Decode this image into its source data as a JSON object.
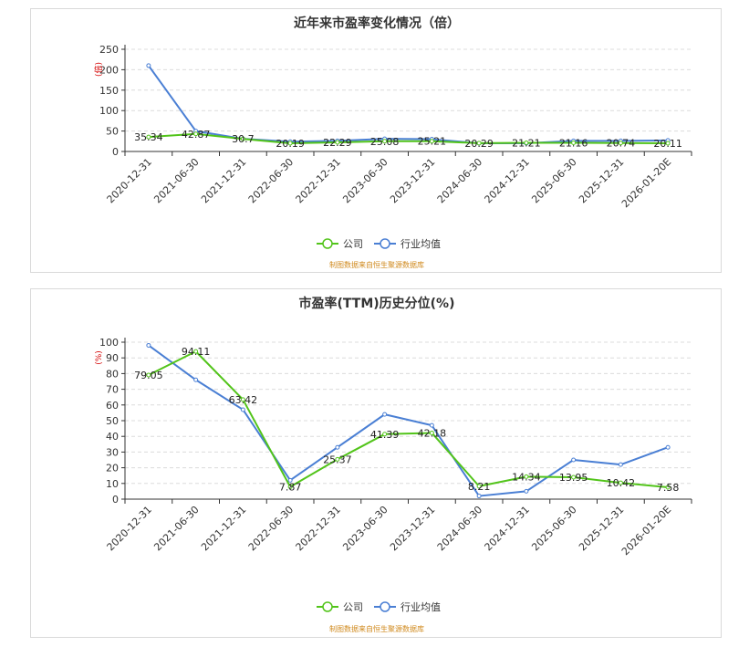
{
  "chart_data": [
    {
      "type": "line",
      "title": "近年来市盈率变化情况（倍）",
      "ylabel": "(倍)",
      "ylim": [
        0,
        250
      ],
      "yticks": [
        0,
        50,
        100,
        150,
        200,
        250
      ],
      "grid": true,
      "legend_position": "bottom",
      "categories": [
        "2020-12-31",
        "2021-06-30",
        "2021-12-31",
        "2022-06-30",
        "2022-12-31",
        "2023-06-30",
        "2023-12-31",
        "2024-06-30",
        "2024-12-31",
        "2025-06-30",
        "2025-12-31",
        "2026-01-20E"
      ],
      "series": [
        {
          "name": "公司",
          "color": "#52c41a",
          "show_labels": true,
          "values": [
            35.34,
            42.87,
            30.7,
            20.19,
            22.29,
            25.08,
            25.21,
            20.29,
            21.21,
            21.16,
            20.74,
            20.11
          ]
        },
        {
          "name": "行业均值",
          "color": "#4a7fd4",
          "show_labels": false,
          "values": [
            210,
            50,
            31,
            24,
            26,
            31,
            30,
            20,
            20,
            26,
            26,
            27
          ]
        }
      ],
      "source": "制图数据来自恒生聚源数据库"
    },
    {
      "type": "line",
      "title": "市盈率(TTM)历史分位(%)",
      "ylabel": "(%)",
      "ylim": [
        0,
        100
      ],
      "yticks": [
        0,
        10,
        20,
        30,
        40,
        50,
        60,
        70,
        80,
        90,
        100
      ],
      "grid": true,
      "legend_position": "bottom",
      "categories": [
        "2020-12-31",
        "2021-06-30",
        "2021-12-31",
        "2022-06-30",
        "2022-12-31",
        "2023-06-30",
        "2023-12-31",
        "2024-06-30",
        "2024-12-31",
        "2025-06-30",
        "2025-12-31",
        "2026-01-20E"
      ],
      "series": [
        {
          "name": "公司",
          "color": "#52c41a",
          "show_labels": true,
          "values": [
            79.05,
            94.11,
            63.42,
            7.87,
            25.37,
            41.39,
            42.18,
            8.21,
            14.34,
            13.95,
            10.42,
            7.58
          ]
        },
        {
          "name": "行业均值",
          "color": "#4a7fd4",
          "show_labels": false,
          "values": [
            98,
            76,
            57,
            12,
            33,
            54,
            47,
            2,
            5,
            25,
            22,
            33
          ]
        }
      ],
      "source": "制图数据来自恒生聚源数据库"
    }
  ]
}
